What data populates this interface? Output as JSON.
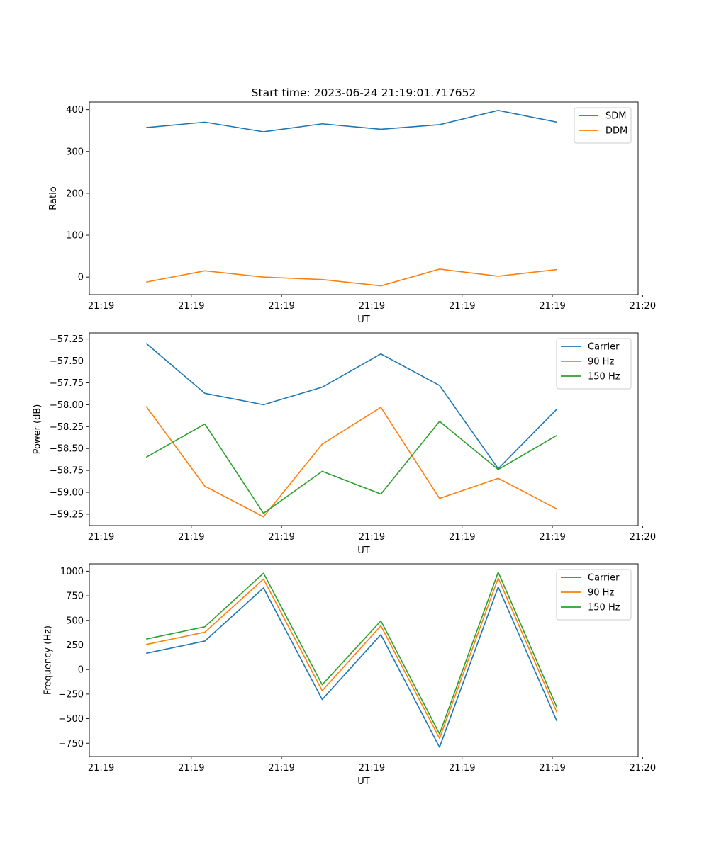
{
  "chart_data": [
    {
      "type": "line",
      "title": "Start time: 2023-06-24 21:19:01.717652",
      "xlabel": "UT",
      "ylabel": "Ratio",
      "ylim": [
        -42,
        418
      ],
      "yticks": [
        0,
        100,
        200,
        300,
        400
      ],
      "ytick_labels": [
        "0",
        "100",
        "200",
        "300",
        "400"
      ],
      "legend_position": "top-right",
      "series": [
        {
          "name": "SDM",
          "color": "#1f77b4",
          "values": [
            357,
            370,
            347,
            366,
            353,
            364,
            398,
            370
          ]
        },
        {
          "name": "DDM",
          "color": "#ff7f0e",
          "values": [
            -12,
            15,
            0,
            -6,
            -21,
            19,
            2,
            18
          ]
        }
      ]
    },
    {
      "type": "line",
      "title": "",
      "xlabel": "UT",
      "ylabel": "Power (dB)",
      "ylim": [
        -59.38,
        -57.18
      ],
      "yticks": [
        -59.25,
        -59.0,
        -58.75,
        -58.5,
        -58.25,
        -58.0,
        -57.75,
        -57.5,
        -57.25
      ],
      "ytick_labels": [
        "−59.25",
        "−59.00",
        "−58.75",
        "−58.50",
        "−58.25",
        "−58.00",
        "−57.75",
        "−57.50",
        "−57.25"
      ],
      "legend_position": "top-right",
      "series": [
        {
          "name": "Carrier",
          "color": "#1f77b4",
          "values": [
            -57.3,
            -57.87,
            -58.0,
            -57.8,
            -57.42,
            -57.78,
            -58.73,
            -58.05
          ]
        },
        {
          "name": "90 Hz",
          "color": "#ff7f0e",
          "values": [
            -58.02,
            -58.93,
            -59.28,
            -58.45,
            -58.03,
            -59.07,
            -58.84,
            -59.19
          ]
        },
        {
          "name": "150 Hz",
          "color": "#2ca02c",
          "values": [
            -58.6,
            -58.22,
            -59.24,
            -58.76,
            -59.02,
            -58.19,
            -58.74,
            -58.35
          ]
        }
      ]
    },
    {
      "type": "line",
      "title": "",
      "xlabel": "UT",
      "ylabel": "Frequency (Hz)",
      "ylim": [
        -885,
        1075
      ],
      "yticks": [
        -750,
        -500,
        -250,
        0,
        250,
        500,
        750,
        1000
      ],
      "ytick_labels": [
        "−750",
        "−500",
        "−250",
        "0",
        "250",
        "500",
        "750",
        "1000"
      ],
      "legend_position": "top-right",
      "series": [
        {
          "name": "Carrier",
          "color": "#1f77b4",
          "values": [
            165,
            290,
            830,
            -305,
            355,
            -790,
            840,
            -525
          ]
        },
        {
          "name": "90 Hz",
          "color": "#ff7f0e",
          "values": [
            255,
            380,
            920,
            -215,
            445,
            -700,
            930,
            -435
          ]
        },
        {
          "name": "150 Hz",
          "color": "#2ca02c",
          "values": [
            310,
            435,
            980,
            -155,
            495,
            -655,
            990,
            -385
          ]
        }
      ]
    }
  ],
  "x_axis": {
    "point_x": [
      0.5,
      1.15,
      1.8,
      2.45,
      3.1,
      3.75,
      4.4,
      5.05
    ],
    "xlim": [
      -0.13,
      5.95
    ],
    "ticks": [
      0,
      1,
      2,
      3,
      4,
      5,
      6
    ],
    "tick_labels": [
      "21:19",
      "21:19",
      "21:19",
      "21:19",
      "21:19",
      "21:19",
      "21:20"
    ]
  }
}
